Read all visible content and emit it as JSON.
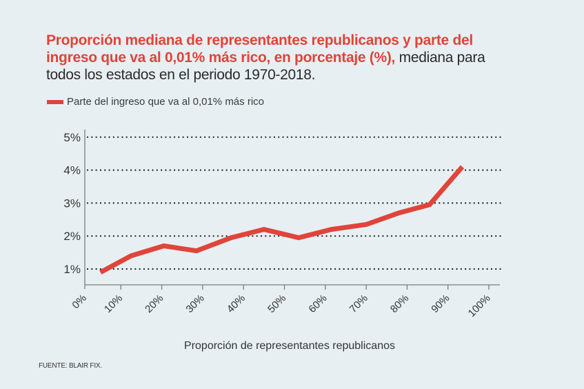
{
  "title": {
    "highlight": "Proporción mediana de representantes republicanos y parte del ingreso que va al 0,01% más rico, en porcentaje (%),",
    "rest": " mediana para todos los estados en el periodo 1970-2018."
  },
  "source": "FUENTE: BLAIR FIX.",
  "colors": {
    "accent": "#e0443a",
    "background": "#e8eff2",
    "text": "#333333"
  },
  "chart_data": {
    "type": "line",
    "title": "Proporción mediana de representantes republicanos y parte del ingreso que va al 0,01% más rico, en porcentaje (%), mediana para todos los estados en el periodo 1970-2018.",
    "xlabel": "Proporción de representantes republicanos",
    "ylabel": "",
    "xlim": [
      0,
      100
    ],
    "ylim": [
      0.5,
      5
    ],
    "x_ticks": [
      "0%",
      "10%",
      "20%",
      "30%",
      "40%",
      "50%",
      "60%",
      "70%",
      "80%",
      "90%",
      "100%"
    ],
    "y_ticks": [
      "1%",
      "2%",
      "3%",
      "4%",
      "5%"
    ],
    "grid": "horizontal-dotted",
    "legend_position": "top-left",
    "series": [
      {
        "name": "Parte del ingreso que va al 0,01% más rico",
        "color": "#e0443a",
        "x": [
          5,
          12.5,
          20.5,
          28.5,
          37,
          45,
          53.5,
          61.5,
          70,
          78,
          85.5,
          93.5
        ],
        "y": [
          0.9,
          1.4,
          1.7,
          1.55,
          1.95,
          2.2,
          1.95,
          2.2,
          2.35,
          2.7,
          2.95,
          4.1
        ]
      }
    ]
  }
}
